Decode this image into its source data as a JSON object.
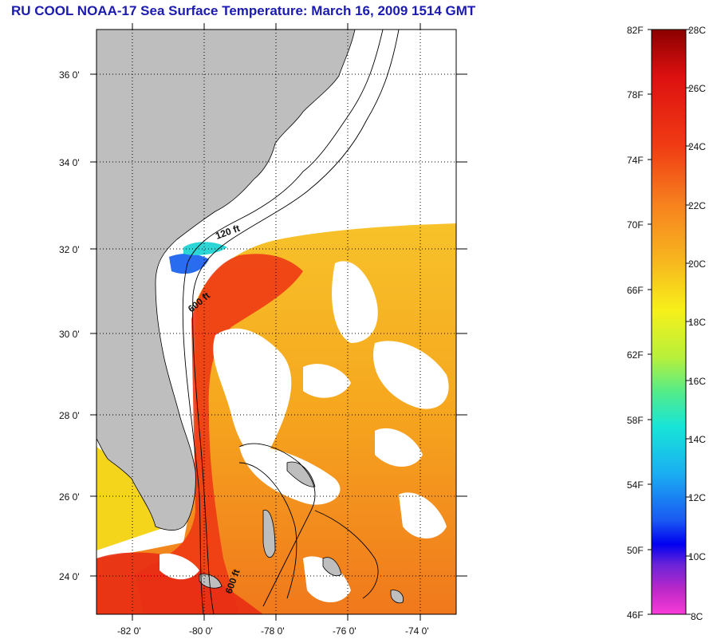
{
  "title": "RU COOL  NOAA-17  Sea Surface Temperature:  March 16, 2009 1514 GMT",
  "map": {
    "lat_labels": [
      "36 0'",
      "34 0'",
      "32 0'",
      "30 0'",
      "28 0'",
      "26 0'",
      "24 0'"
    ],
    "lon_labels": [
      "-82 0'",
      "-80 0'",
      "-78 0'",
      "-76 0'",
      "-74 0'"
    ],
    "contour_labels": [
      "120 ft",
      "600 ft",
      "600 ft"
    ],
    "colors": {
      "land": "#bebebe",
      "cloud": "#ffffff",
      "warm_sst": "#f5a21f",
      "hot_sst": "#ee3a14",
      "cool_sst": "#f4d51c"
    }
  },
  "colorbar": {
    "fahrenheit_labels": [
      "82F",
      "78F",
      "74F",
      "70F",
      "66F",
      "62F",
      "58F",
      "54F",
      "50F",
      "46F"
    ],
    "celsius_labels": [
      "28C",
      "26C",
      "24C",
      "22C",
      "20C",
      "18C",
      "16C",
      "14C",
      "12C",
      "10C",
      "8C"
    ]
  }
}
